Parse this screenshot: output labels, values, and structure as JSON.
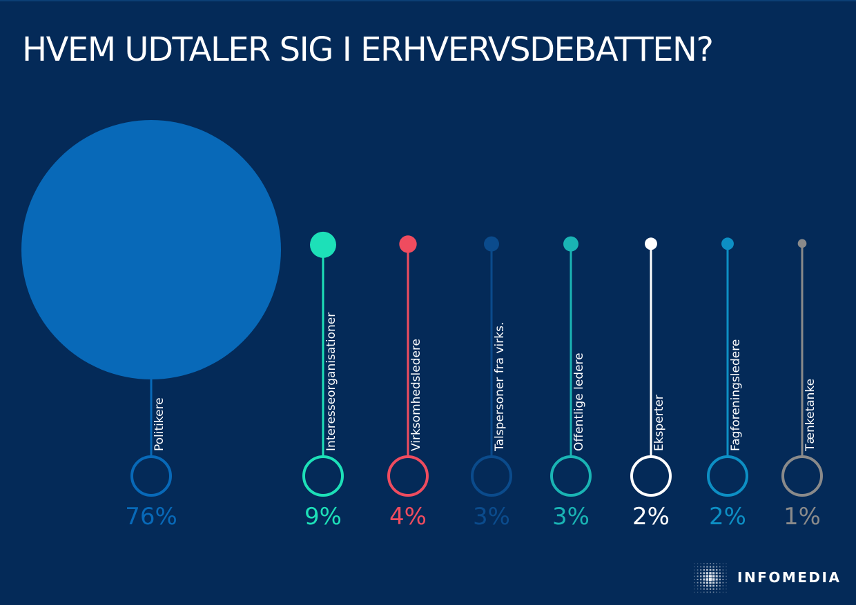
{
  "title": "HVEM UDTALER SIG I ERHVERVSDEBATTEN?",
  "logo": {
    "name": "INFOMEDIA"
  },
  "colors": {
    "background": "#042a58",
    "politikere": "#0869b8",
    "interesseorganisationer": "#1de0b8",
    "virksomhedsledere": "#ef4c5f",
    "talspersoner": "#0b4b8c",
    "offentlige": "#1ab4b4",
    "eksperter": "#ffffff",
    "fagforeningsledere": "#0d8fc4",
    "taenketanke": "#8a8a8a"
  },
  "chart_data": {
    "type": "bubble",
    "unit": "%",
    "series": [
      {
        "name": "Politikere",
        "value": 76,
        "label": "76%",
        "color": "#0869b8"
      },
      {
        "name": "Interesseorganisationer",
        "value": 9,
        "label": "9%",
        "color": "#1de0b8"
      },
      {
        "name": "Virksomhedsledere",
        "value": 4,
        "label": "4%",
        "color": "#ef4c5f"
      },
      {
        "name": "Talspersoner fra virks.",
        "value": 3,
        "label": "3%",
        "color": "#0b4b8c"
      },
      {
        "name": "Offentlige ledere",
        "value": 3,
        "label": "3%",
        "color": "#1ab4b4"
      },
      {
        "name": "Eksperter",
        "value": 2,
        "label": "2%",
        "color": "#ffffff"
      },
      {
        "name": "Fagforeningsledere",
        "value": 2,
        "label": "2%",
        "color": "#0d8fc4"
      },
      {
        "name": "Tænketanke",
        "value": 1,
        "label": "1%",
        "color": "#8a8a8a"
      }
    ]
  }
}
